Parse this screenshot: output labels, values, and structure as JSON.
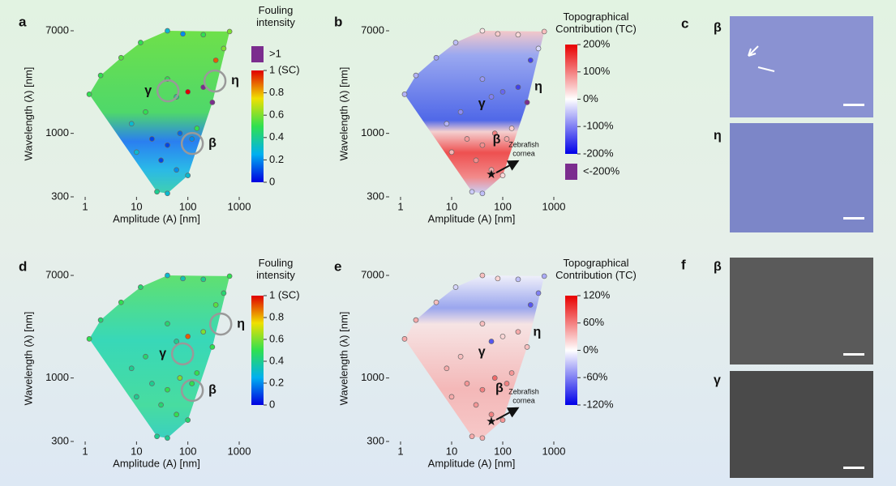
{
  "chart_data": [
    {
      "type": "scatter",
      "panel_label": "a",
      "xlabel": "Amplitude (A) [nm]",
      "ylabel": "Wavelength (λ) [nm]",
      "log_x": true,
      "log_y": true,
      "xlim": [
        0.6,
        1000
      ],
      "ylim": [
        300,
        7000
      ],
      "xticks": [
        1,
        10,
        100,
        1000
      ],
      "yticks": [
        300,
        1000,
        7000
      ],
      "x": [
        1.2,
        2,
        5,
        12,
        40,
        80,
        200,
        650,
        500,
        350,
        40,
        60,
        100,
        200,
        300,
        15,
        8,
        20,
        40,
        70,
        120,
        150,
        10,
        30,
        60,
        25,
        40,
        100
      ],
      "y": [
        2100,
        3000,
        4200,
        5600,
        7000,
        6600,
        6500,
        6900,
        5000,
        4000,
        2800,
        2000,
        2200,
        2400,
        1800,
        1500,
        1200,
        900,
        800,
        1000,
        900,
        1100,
        700,
        600,
        500,
        330,
        320,
        450
      ],
      "values": [
        0.5,
        0.5,
        0.55,
        0.5,
        0.3,
        0.2,
        0.5,
        0.6,
        0.6,
        0.9,
        0.5,
        0.4,
        1.0,
        1.1,
        1.2,
        0.5,
        0.3,
        0.1,
        0.1,
        0.15,
        0.2,
        0.5,
        0.3,
        0.1,
        0.2,
        0.4,
        0.3,
        0.3
      ],
      "colormap": "jet",
      "colorbar_title": "Fouling intensity",
      "clim": [
        0,
        1
      ],
      "colorbar_ticks": [
        0,
        0.2,
        0.4,
        0.6,
        0.8,
        {
          "value": 1,
          "label": "1 (SC)"
        }
      ],
      "extra_label": ">1",
      "extra_color": "#7b2d8e",
      "annotation_circles": true,
      "annotations": [
        {
          "label": "γ",
          "x": 41,
          "y": 2240
        },
        {
          "label": "η",
          "x": 337,
          "y": 2700
        },
        {
          "label": "β",
          "x": 122,
          "y": 825
        }
      ]
    },
    {
      "type": "scatter",
      "panel_label": "b",
      "xlabel": "Amplitude (A) [nm]",
      "ylabel": "Wavelength (λ) [nm]",
      "log_x": true,
      "log_y": true,
      "xlim": [
        0.6,
        1000
      ],
      "ylim": [
        300,
        7000
      ],
      "xticks": [
        1,
        10,
        100,
        1000
      ],
      "yticks": [
        300,
        1000,
        7000
      ],
      "x": [
        1.2,
        2,
        5,
        12,
        40,
        80,
        200,
        650,
        500,
        350,
        40,
        60,
        100,
        200,
        300,
        15,
        8,
        20,
        40,
        70,
        120,
        150,
        10,
        30,
        60,
        25,
        40,
        100
      ],
      "y": [
        2100,
        3000,
        4200,
        5600,
        7000,
        6600,
        6500,
        6900,
        5000,
        4000,
        2800,
        2000,
        2200,
        2400,
        1800,
        1500,
        1200,
        900,
        800,
        1000,
        900,
        1100,
        700,
        600,
        500,
        330,
        320,
        450
      ],
      "values": [
        -60,
        -60,
        -70,
        -50,
        20,
        40,
        30,
        50,
        -30,
        -150,
        -80,
        -100,
        -120,
        -150,
        -250,
        -90,
        -60,
        80,
        90,
        100,
        70,
        40,
        60,
        90,
        60,
        -40,
        -50,
        30
      ],
      "colormap": "bwr",
      "colorbar_title": "Topographical Contribution (TC)",
      "clim": [
        -200,
        200
      ],
      "colorbar_ticks": [
        {
          "value": -200,
          "label": "-200%"
        },
        {
          "value": -100,
          "label": "-100%"
        },
        {
          "value": 0,
          "label": "0%"
        },
        {
          "value": 100,
          "label": "100%"
        },
        {
          "value": 200,
          "label": "200%"
        }
      ],
      "extra_label": "<-200%",
      "extra_color": "#7b2d8e",
      "annotation_circles": false,
      "annotations": [
        {
          "label": "γ",
          "x": 39,
          "y": 1750
        },
        {
          "label": "η",
          "x": 500,
          "y": 2420
        },
        {
          "label": "β",
          "x": 76,
          "y": 880
        }
      ],
      "marker_annotation": {
        "text": [
          "Zebrafish",
          "cornea"
        ],
        "x": 60,
        "y": 460
      }
    },
    {
      "type": "scatter",
      "panel_label": "d",
      "xlabel": "Amplitude (A) [nm]",
      "ylabel": "Wavelength (λ) [nm]",
      "log_x": true,
      "log_y": true,
      "xlim": [
        0.6,
        1000
      ],
      "ylim": [
        300,
        7000
      ],
      "xticks": [
        1,
        10,
        100,
        1000
      ],
      "yticks": [
        300,
        1000,
        7000
      ],
      "x": [
        1.2,
        2,
        5,
        12,
        40,
        80,
        200,
        650,
        500,
        350,
        40,
        60,
        100,
        200,
        300,
        15,
        8,
        20,
        40,
        70,
        120,
        150,
        10,
        30,
        60,
        25,
        40,
        100
      ],
      "y": [
        2100,
        3000,
        4200,
        5600,
        7000,
        6600,
        6500,
        6900,
        5000,
        4000,
        2800,
        2000,
        2200,
        2400,
        1800,
        1500,
        1200,
        900,
        800,
        1000,
        900,
        1100,
        700,
        600,
        500,
        330,
        320,
        450
      ],
      "values": [
        0.5,
        0.45,
        0.5,
        0.45,
        0.3,
        0.35,
        0.4,
        0.5,
        0.45,
        0.55,
        0.45,
        0.4,
        0.9,
        0.6,
        0.5,
        0.45,
        0.4,
        0.4,
        0.5,
        0.6,
        0.5,
        0.5,
        0.4,
        0.45,
        0.5,
        0.4,
        0.4,
        0.45
      ],
      "colormap": "jet",
      "colorbar_title": "Fouling intensity",
      "clim": [
        0,
        1
      ],
      "colorbar_ticks": [
        0,
        0.2,
        0.4,
        0.6,
        0.8,
        {
          "value": 1,
          "label": "1 (SC)"
        }
      ],
      "annotation_circles": true,
      "annotations": [
        {
          "label": "γ",
          "x": 79,
          "y": 1580
        },
        {
          "label": "η",
          "x": 437,
          "y": 2780
        },
        {
          "label": "β",
          "x": 122,
          "y": 790
        }
      ]
    },
    {
      "type": "scatter",
      "panel_label": "e",
      "xlabel": "Amplitude (A) [nm]",
      "ylabel": "Wavelength (λ) [nm]",
      "log_x": true,
      "log_y": true,
      "xlim": [
        0.6,
        1000
      ],
      "ylim": [
        300,
        7000
      ],
      "xticks": [
        1,
        10,
        100,
        1000
      ],
      "yticks": [
        300,
        1000,
        7000
      ],
      "x": [
        1.2,
        2,
        5,
        12,
        40,
        80,
        200,
        650,
        500,
        350,
        40,
        60,
        100,
        200,
        300,
        15,
        8,
        20,
        40,
        70,
        120,
        150,
        10,
        30,
        60,
        25,
        40,
        100
      ],
      "y": [
        2100,
        3000,
        4200,
        5600,
        7000,
        6600,
        6500,
        6900,
        5000,
        4000,
        2800,
        2000,
        2200,
        2400,
        1800,
        1500,
        1200,
        900,
        800,
        1000,
        900,
        1100,
        700,
        600,
        500,
        330,
        320,
        450
      ],
      "values": [
        40,
        40,
        30,
        -20,
        30,
        20,
        -30,
        -40,
        -60,
        -80,
        30,
        -80,
        20,
        40,
        30,
        30,
        40,
        50,
        60,
        70,
        60,
        50,
        40,
        50,
        60,
        40,
        40,
        50
      ],
      "colormap": "bwr",
      "colorbar_title": "Topographical Contribution (TC)",
      "clim": [
        -120,
        120
      ],
      "colorbar_ticks": [
        {
          "value": -120,
          "label": "-120%"
        },
        {
          "value": -60,
          "label": "-60%"
        },
        {
          "value": 0,
          "label": "0%"
        },
        {
          "value": 60,
          "label": "60%"
        },
        {
          "value": 120,
          "label": "120%"
        }
      ],
      "annotation_circles": false,
      "annotations": [
        {
          "label": "γ",
          "x": 39,
          "y": 1630
        },
        {
          "label": "η",
          "x": 470,
          "y": 2380
        },
        {
          "label": "β",
          "x": 86,
          "y": 815
        }
      ],
      "marker_annotation": {
        "text": [
          "Zebrafish",
          "cornea"
        ],
        "x": 60,
        "y": 440
      }
    }
  ],
  "images": {
    "c": {
      "panel_label": "c",
      "labels": [
        "β",
        "η"
      ]
    },
    "f": {
      "panel_label": "f",
      "labels": [
        "β",
        "γ"
      ]
    }
  }
}
